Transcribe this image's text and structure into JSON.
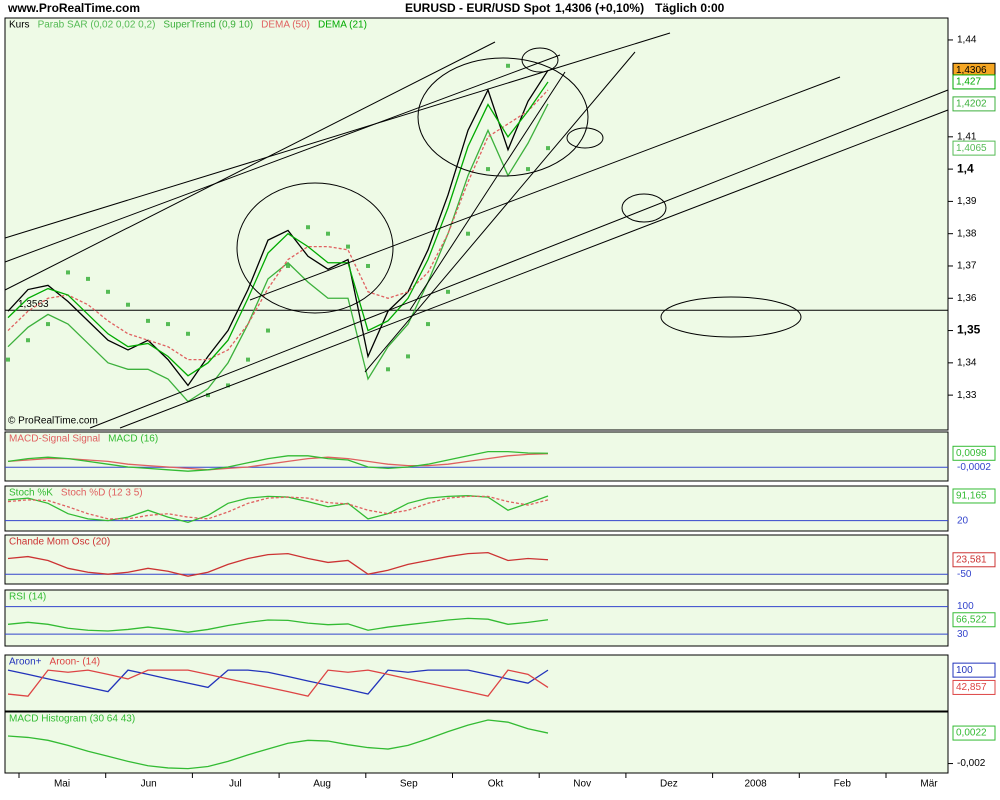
{
  "header": {
    "site": "www.ProRealTime.com",
    "instrument": "EURUSD - EUR/USD Spot",
    "quote": "1,4306 (+0,10%)",
    "period": "Täglich 0:00",
    "copyright": "© ProRealTime.com"
  },
  "x_axis": {
    "categories": [
      "Mai",
      "Jun",
      "Jul",
      "Aug",
      "Sep",
      "Okt",
      "Nov",
      "Dez",
      "2008",
      "Feb",
      "Mär"
    ]
  },
  "chart_data": [
    {
      "type": "line",
      "ylim": [
        1.3192,
        1.4468
      ],
      "grid": false,
      "yticks": [
        {
          "value": 1.44,
          "label": "1,44"
        },
        {
          "value": 1.41,
          "label": "1,41"
        },
        {
          "value": 1.4,
          "label": "1,4",
          "bold": true
        },
        {
          "value": 1.39,
          "label": "1,39"
        },
        {
          "value": 1.38,
          "label": "1,38"
        },
        {
          "value": 1.37,
          "label": "1,37"
        },
        {
          "value": 1.36,
          "label": "1,36"
        },
        {
          "value": 1.35,
          "label": "1,35",
          "bold": true
        },
        {
          "value": 1.34,
          "label": "1,34"
        },
        {
          "value": 1.33,
          "label": "1,33"
        }
      ],
      "level": {
        "value": 1.3563,
        "label": "1,3563"
      },
      "series": [
        {
          "name": "Kurs",
          "color": "#000000",
          "last_label": "1,4306",
          "values": [
            1.356,
            1.3627,
            1.364,
            1.359,
            1.353,
            1.347,
            1.344,
            1.347,
            1.341,
            1.333,
            1.342,
            1.35,
            1.3627,
            1.378,
            1.381,
            1.373,
            1.369,
            1.372,
            1.342,
            1.356,
            1.362,
            1.375,
            1.392,
            1.412,
            1.4245,
            1.406,
            1.421,
            1.4306
          ]
        },
        {
          "name": "Parab SAR (0,02 0,02 0,2)",
          "color": "#55bb55",
          "style": "dots",
          "last_label": "1,4065",
          "values": [
            1.341,
            1.347,
            1.352,
            1.368,
            1.366,
            1.362,
            1.358,
            1.353,
            1.352,
            1.349,
            1.33,
            1.333,
            1.341,
            1.35,
            1.37,
            1.382,
            1.38,
            1.376,
            1.37,
            1.338,
            1.342,
            1.352,
            1.362,
            1.38,
            1.4,
            1.432,
            1.4,
            1.4065
          ]
        },
        {
          "name": "SuperTrend (0,9 10)",
          "color": "#3cb03c",
          "last_label": "1,4202",
          "values": [
            1.345,
            1.351,
            1.355,
            1.352,
            1.346,
            1.34,
            1.338,
            1.338,
            1.335,
            1.328,
            1.332,
            1.34,
            1.352,
            1.366,
            1.371,
            1.365,
            1.36,
            1.36,
            1.335,
            1.345,
            1.352,
            1.365,
            1.38,
            1.398,
            1.412,
            1.398,
            1.408,
            1.4202
          ]
        },
        {
          "name": "DEMA (50)",
          "color": "#e06060",
          "style": "dashed",
          "values": [
            1.35,
            1.356,
            1.36,
            1.361,
            1.358,
            1.353,
            1.349,
            1.347,
            1.345,
            1.341,
            1.341,
            1.344,
            1.352,
            1.363,
            1.372,
            1.376,
            1.376,
            1.375,
            1.362,
            1.36,
            1.362,
            1.368,
            1.38,
            1.396,
            1.41,
            1.414,
            1.418,
            1.4245
          ]
        },
        {
          "name": "DEMA (21)",
          "color": "#00aa00",
          "last_label": "1,427",
          "values": [
            1.354,
            1.36,
            1.363,
            1.361,
            1.355,
            1.349,
            1.345,
            1.346,
            1.342,
            1.336,
            1.34,
            1.347,
            1.36,
            1.374,
            1.38,
            1.376,
            1.371,
            1.371,
            1.35,
            1.353,
            1.36,
            1.372,
            1.388,
            1.407,
            1.42,
            1.41,
            1.418,
            1.427
          ]
        }
      ]
    },
    {
      "type": "line",
      "ylim": [
        -0.01,
        0.025
      ],
      "grid": true,
      "yticks": [
        {
          "value": -0.0002,
          "label": "-0,0002"
        }
      ],
      "series": [
        {
          "name": "MACD-Signal Signal",
          "color": "#e06060",
          "values": [
            0.004,
            0.005,
            0.006,
            0.006,
            0.005,
            0.004,
            0.002,
            0.001,
            0.0,
            -0.001,
            -0.002,
            -0.001,
            0.0,
            0.002,
            0.004,
            0.006,
            0.007,
            0.006,
            0.004,
            0.002,
            0.001,
            0.001,
            0.002,
            0.004,
            0.006,
            0.008,
            0.009,
            0.0095
          ]
        },
        {
          "name": "MACD (16)",
          "color": "#33bb33",
          "last_label": "0,0098",
          "values": [
            0.004,
            0.006,
            0.007,
            0.006,
            0.004,
            0.002,
            0.0,
            -0.001,
            -0.002,
            -0.003,
            -0.002,
            0.0,
            0.003,
            0.006,
            0.008,
            0.008,
            0.006,
            0.005,
            0.0,
            -0.001,
            0.0,
            0.002,
            0.005,
            0.008,
            0.011,
            0.011,
            0.01,
            0.0098
          ]
        }
      ]
    },
    {
      "type": "line",
      "ylim": [
        -10,
        120
      ],
      "grid": true,
      "yticks": [
        20
      ],
      "series": [
        {
          "name": "Stoch %K",
          "color": "#33bb33",
          "last_label": "91,165",
          "values": [
            80,
            85,
            70,
            40,
            25,
            20,
            30,
            50,
            30,
            15,
            35,
            70,
            85,
            90,
            88,
            75,
            60,
            70,
            25,
            40,
            70,
            85,
            90,
            92,
            88,
            50,
            70,
            91.165
          ]
        },
        {
          "name": "Stoch %D (12 3 5)",
          "color": "#e06060",
          "style": "dashed",
          "values": [
            75,
            80,
            78,
            60,
            40,
            25,
            25,
            35,
            40,
            30,
            25,
            45,
            70,
            85,
            88,
            85,
            72,
            68,
            50,
            40,
            50,
            70,
            85,
            90,
            90,
            75,
            65,
            80
          ]
        }
      ]
    },
    {
      "type": "line",
      "ylim": [
        -100,
        150
      ],
      "grid": true,
      "yticks": [
        -50
      ],
      "series": [
        {
          "name": "Chande Mom Osc (20)",
          "color": "#cc3333",
          "last_label": "23,581",
          "values": [
            30,
            40,
            20,
            -20,
            -40,
            -50,
            -40,
            -20,
            -35,
            -60,
            -40,
            0,
            30,
            50,
            55,
            30,
            10,
            20,
            -50,
            -30,
            0,
            20,
            40,
            55,
            60,
            20,
            30,
            23.581
          ]
        }
      ]
    },
    {
      "type": "line",
      "ylim": [
        0,
        142
      ],
      "grid": true,
      "yticks": [
        100,
        30
      ],
      "series": [
        {
          "name": "RSI (14)",
          "color": "#33bb33",
          "last_label": "66,522",
          "values": [
            55,
            60,
            55,
            45,
            40,
            38,
            42,
            48,
            42,
            35,
            42,
            52,
            60,
            66,
            65,
            58,
            54,
            56,
            40,
            48,
            54,
            60,
            66,
            70,
            68,
            55,
            60,
            66.522
          ]
        }
      ]
    },
    {
      "type": "line",
      "ylim": [
        -35,
        150
      ],
      "grid": false,
      "yticks": [],
      "series": [
        {
          "name": "Aroon+",
          "color": "#2233bb",
          "last_label": "100",
          "values": [
            100,
            86,
            71,
            57,
            43,
            29,
            100,
            86,
            71,
            57,
            43,
            100,
            100,
            93,
            79,
            64,
            50,
            36,
            21,
            100,
            93,
            100,
            100,
            100,
            86,
            71,
            57,
            100
          ]
        },
        {
          "name": "Aroon- (14)",
          "color": "#dd4444",
          "last_label": "42,857",
          "values": [
            21,
            14,
            100,
            93,
            100,
            86,
            71,
            100,
            100,
            100,
            86,
            71,
            57,
            43,
            29,
            14,
            100,
            93,
            100,
            86,
            71,
            57,
            43,
            29,
            14,
            100,
            86,
            42.857
          ]
        }
      ]
    },
    {
      "type": "line",
      "ylim": [
        -0.0033,
        0.0051
      ],
      "grid": false,
      "yticks": [
        {
          "value": -0.002,
          "label": "-0,002"
        }
      ],
      "series": [
        {
          "name": "MACD Histogram (30 64 43)",
          "color": "#33bb33",
          "last_label": "0,0022",
          "values": [
            0.0018,
            0.0016,
            0.0012,
            0.0005,
            -0.0003,
            -0.001,
            -0.0017,
            -0.0023,
            -0.0026,
            -0.0027,
            -0.0024,
            -0.0017,
            -0.0008,
            0.0,
            0.0008,
            0.0012,
            0.0011,
            0.0006,
            0.0002,
            0.0,
            0.0005,
            0.0014,
            0.0024,
            0.0033,
            0.004,
            0.0037,
            0.0028,
            0.0022
          ]
        }
      ]
    }
  ]
}
